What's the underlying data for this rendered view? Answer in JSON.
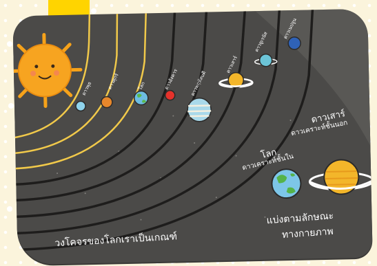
{
  "labels": {
    "mercury": "ดาวพุธ",
    "venus": "ดาวศุกร์",
    "earth": "โลก",
    "mars": "ดาวอังคาร",
    "jupiter": "ดาวพฤหัสบดี",
    "saturn": "ดาวเสาร์",
    "uranus": "ดาวยูเรนัส",
    "neptune": "ดาวเนปจูน"
  },
  "captions": {
    "orbit_caption": "วงโคจรของโลกเราเป็นเกณฑ์",
    "earth_big_1": "โลก",
    "earth_big_2": "ดาวเคราะห์ชั้นใน",
    "saturn_big_1": "ดาวเสาร์",
    "saturn_big_2": "ดาวเคราะห์ชั้นนอก",
    "classify_1": "แบ่งตามลักษณะ",
    "classify_2": "ทางกายภาพ"
  },
  "colors": {
    "board": "#4b4a48",
    "orbit_inner": "#f1c94a",
    "orbit_outer": "#1e1d1c",
    "sun": "#f6a21a",
    "earth": "#5fb0d9",
    "saturn": "#f3b62a"
  }
}
